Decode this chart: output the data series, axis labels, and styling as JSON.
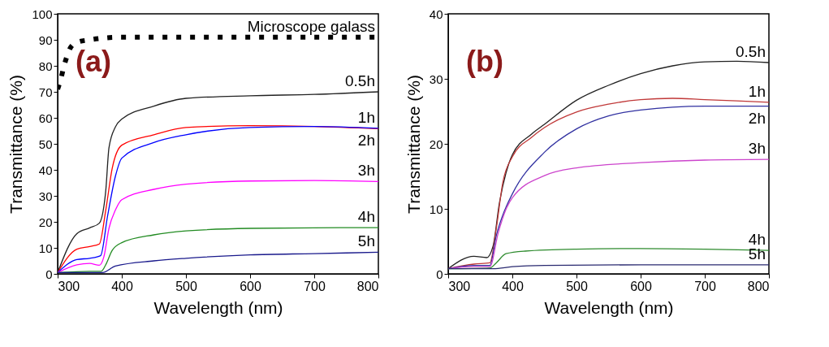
{
  "chart_data": [
    {
      "type": "line",
      "xlabel": "Wavelength (nm)",
      "ylabel": "Transmittance (%)",
      "annotations": [
        "(a)"
      ],
      "xlim": [
        300,
        800
      ],
      "ylim": [
        0,
        100
      ],
      "xticks": [
        300,
        400,
        500,
        600,
        700,
        800
      ],
      "yticks": [
        0,
        10,
        20,
        30,
        40,
        50,
        60,
        70,
        80,
        90,
        100
      ],
      "grid": false,
      "legend": false,
      "line_style": "solid",
      "series": [
        {
          "name": "Microscope galass",
          "color": "#000000",
          "line_style": "dotted",
          "x": [
            300,
            305,
            310,
            315,
            320,
            330,
            350,
            400,
            800
          ],
          "values": [
            71,
            75,
            80,
            84,
            87,
            89,
            90,
            91,
            91
          ]
        },
        {
          "name": "0.5h",
          "color": "#222222",
          "x": [
            300,
            330,
            350,
            365,
            375,
            380,
            390,
            400,
            450,
            500,
            600,
            700,
            800
          ],
          "values": [
            0.5,
            15.5,
            17.7,
            19.5,
            32,
            48.5,
            56.5,
            59.5,
            64.5,
            67.5,
            68.5,
            69,
            70
          ]
        },
        {
          "name": "1h",
          "color": "#ff0000",
          "x": [
            300,
            330,
            350,
            365,
            375,
            385,
            400,
            450,
            500,
            600,
            700,
            800
          ],
          "values": [
            0.5,
            9.5,
            10.5,
            11.5,
            24.5,
            40.5,
            49.5,
            53.5,
            56.3,
            57,
            56.7,
            55.8
          ]
        },
        {
          "name": "2h",
          "color": "#0000ff",
          "x": [
            300,
            330,
            350,
            367,
            378,
            390,
            400,
            450,
            500,
            600,
            700,
            800
          ],
          "values": [
            0.5,
            5.5,
            6,
            7,
            22.5,
            37.5,
            44.5,
            50.5,
            53.5,
            56.3,
            56.7,
            56
          ]
        },
        {
          "name": "3h",
          "color": "#ff00ff",
          "x": [
            300,
            330,
            350,
            365,
            372,
            380,
            390,
            400,
            450,
            500,
            600,
            700,
            800
          ],
          "values": [
            0.5,
            3.5,
            4,
            3.3,
            6.5,
            17.5,
            24.5,
            28.5,
            32.5,
            34.5,
            35.7,
            35.9,
            35.5
          ]
        },
        {
          "name": "4h",
          "color": "#228b22",
          "x": [
            300,
            350,
            368,
            375,
            385,
            400,
            450,
            500,
            600,
            700,
            800
          ],
          "values": [
            0.5,
            1,
            1,
            3.5,
            9,
            12,
            15,
            16.5,
            17.5,
            17.7,
            17.8
          ]
        },
        {
          "name": "5h",
          "color": "#1a1a8c",
          "x": [
            300,
            370,
            390,
            450,
            500,
            600,
            700,
            800
          ],
          "values": [
            0.5,
            0.5,
            3,
            5,
            6,
            7.3,
            7.8,
            8.3
          ]
        }
      ]
    },
    {
      "type": "line",
      "xlabel": "Wavelength (nm)",
      "ylabel": "Transmittance (%)",
      "annotations": [
        "(b)"
      ],
      "xlim": [
        300,
        800
      ],
      "ylim": [
        0,
        40
      ],
      "xticks": [
        300,
        400,
        500,
        600,
        700,
        800
      ],
      "yticks": [
        0,
        10,
        20,
        30,
        40
      ],
      "grid": false,
      "legend": false,
      "line_style": "solid",
      "series": [
        {
          "name": "0.5h",
          "color": "#222222",
          "x": [
            300,
            340,
            360,
            370,
            380,
            390,
            400,
            430,
            450,
            500,
            550,
            600,
            650,
            700,
            750,
            800
          ],
          "values": [
            0.8,
            2.7,
            2.5,
            4.3,
            11,
            15.5,
            18.3,
            21.5,
            23,
            26.7,
            29,
            30.8,
            32,
            32.6,
            32.7,
            32.5
          ]
        },
        {
          "name": "1h",
          "color": "#c03838",
          "x": [
            300,
            340,
            365,
            375,
            385,
            400,
            430,
            450,
            500,
            550,
            600,
            650,
            700,
            800
          ],
          "values": [
            0.8,
            1.5,
            1.7,
            7,
            14,
            18,
            21,
            22.5,
            24.9,
            26.1,
            26.8,
            27,
            26.8,
            26.4
          ]
        },
        {
          "name": "2h",
          "color": "#3030a0",
          "x": [
            300,
            340,
            365,
            375,
            385,
            400,
            450,
            500,
            550,
            600,
            700,
            800
          ],
          "values": [
            0.8,
            1.3,
            1.3,
            5.9,
            9,
            12.3,
            18.7,
            22.3,
            24.3,
            25.2,
            25.8,
            25.8
          ]
        },
        {
          "name": "3h",
          "color": "#cc44cc",
          "x": [
            300,
            340,
            365,
            378,
            390,
            400,
            450,
            500,
            600,
            700,
            800
          ],
          "values": [
            0.8,
            1.1,
            1.1,
            6.3,
            9.9,
            11.7,
            15.1,
            16.3,
            17.1,
            17.5,
            17.6
          ]
        },
        {
          "name": "4h",
          "color": "#2e8b2e",
          "x": [
            300,
            365,
            375,
            390,
            420,
            500,
            600,
            700,
            800
          ],
          "values": [
            0.8,
            0.9,
            1.7,
            3.1,
            3.5,
            3.8,
            3.9,
            3.8,
            3.6
          ]
        },
        {
          "name": "5h",
          "color": "#2a2a70",
          "x": [
            300,
            370,
            400,
            450,
            600,
            800
          ],
          "values": [
            0.8,
            0.8,
            1.1,
            1.3,
            1.4,
            1.4
          ]
        }
      ]
    }
  ]
}
